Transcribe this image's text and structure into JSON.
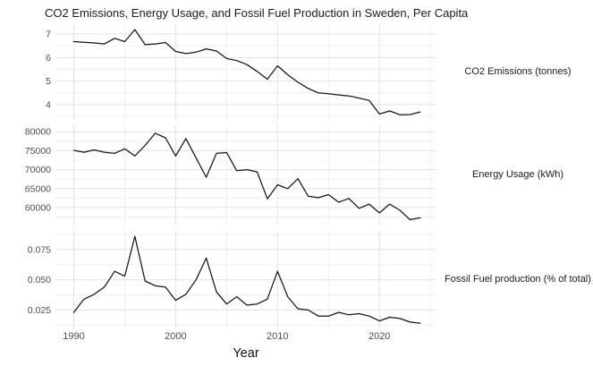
{
  "title": "CO2 Emissions, Energy Usage, and Fossil Fuel Production in Sweden, Per Capita",
  "x_axis": {
    "label": "Year",
    "ticks": [
      1990,
      2000,
      2010,
      2020
    ],
    "tick_labels": [
      "1990",
      "2000",
      "2010",
      "2020"
    ],
    "minor_ticks": [
      1995,
      2005,
      2015,
      2025
    ],
    "xlim": [
      1988.2,
      2025.6
    ]
  },
  "colors": {
    "line": "#151515",
    "grid_major": "#e2e2e2",
    "grid_minor": "#f0f0f0",
    "axis_text": "#4d4d4d",
    "text": "#1a1a1a",
    "background": "#ffffff"
  },
  "chart_data": [
    {
      "type": "line",
      "strip_label": "CO2 Emissions (tonnes)",
      "x": [
        1990,
        1991,
        1992,
        1993,
        1994,
        1995,
        1996,
        1997,
        1998,
        1999,
        2000,
        2001,
        2002,
        2003,
        2004,
        2005,
        2006,
        2007,
        2008,
        2009,
        2010,
        2011,
        2012,
        2013,
        2014,
        2015,
        2016,
        2017,
        2018,
        2019,
        2020,
        2021,
        2022,
        2023,
        2024
      ],
      "values": [
        6.68,
        6.65,
        6.62,
        6.58,
        6.82,
        6.68,
        7.19,
        6.55,
        6.58,
        6.64,
        6.26,
        6.17,
        6.23,
        6.37,
        6.28,
        5.96,
        5.87,
        5.7,
        5.41,
        5.08,
        5.65,
        5.27,
        4.95,
        4.69,
        4.5,
        4.46,
        4.41,
        4.37,
        4.28,
        4.18,
        3.6,
        3.73,
        3.57,
        3.58,
        3.69
      ],
      "y_ticks": [
        7,
        6,
        5,
        4
      ],
      "y_tick_labels": [
        "7",
        "6",
        "5",
        "4"
      ],
      "y_minor_ticks": [
        6.5,
        5.5,
        4.5,
        3.5
      ],
      "ylim": [
        3.35,
        7.42
      ]
    },
    {
      "type": "line",
      "strip_label": "Energy Usage (kWh)",
      "x": [
        1990,
        1991,
        1992,
        1993,
        1994,
        1995,
        1996,
        1997,
        1998,
        1999,
        2000,
        2001,
        2002,
        2003,
        2004,
        2005,
        2006,
        2007,
        2008,
        2009,
        2010,
        2011,
        2012,
        2013,
        2014,
        2015,
        2016,
        2017,
        2018,
        2019,
        2020,
        2021,
        2022,
        2023,
        2024
      ],
      "values": [
        75100,
        74600,
        75200,
        74600,
        74300,
        75500,
        73600,
        76400,
        79600,
        78400,
        73600,
        78200,
        73100,
        68000,
        74300,
        74500,
        69700,
        70000,
        69400,
        62300,
        66000,
        65000,
        67600,
        63000,
        62600,
        63400,
        61400,
        62400,
        59800,
        60900,
        58600,
        60900,
        59300,
        56800,
        57300
      ],
      "y_ticks": [
        80000,
        75000,
        70000,
        65000,
        60000
      ],
      "y_tick_labels": [
        "80000",
        "75000",
        "70000",
        "65000",
        "60000"
      ],
      "y_minor_ticks": [
        77500,
        72500,
        67500,
        62500,
        57500
      ],
      "ylim": [
        55500,
        81700
      ]
    },
    {
      "type": "line",
      "strip_label": "Fossil Fuel production (% of total)",
      "x": [
        1990,
        1991,
        1992,
        1993,
        1994,
        1995,
        1996,
        1997,
        1998,
        1999,
        2000,
        2001,
        2002,
        2003,
        2004,
        2005,
        2006,
        2007,
        2008,
        2009,
        2010,
        2011,
        2012,
        2013,
        2014,
        2015,
        2016,
        2017,
        2018,
        2019,
        2020,
        2021,
        2022,
        2023,
        2024
      ],
      "values": [
        0.023,
        0.034,
        0.038,
        0.044,
        0.057,
        0.053,
        0.086,
        0.049,
        0.045,
        0.044,
        0.033,
        0.038,
        0.05,
        0.068,
        0.04,
        0.03,
        0.036,
        0.029,
        0.03,
        0.034,
        0.057,
        0.036,
        0.026,
        0.025,
        0.02,
        0.02,
        0.023,
        0.021,
        0.022,
        0.02,
        0.016,
        0.019,
        0.018,
        0.015,
        0.014
      ],
      "y_ticks": [
        0.075,
        0.05,
        0.025
      ],
      "y_tick_labels": [
        "0.075",
        "0.050",
        "0.025"
      ],
      "y_minor_ticks": [
        0.0875,
        0.0625,
        0.0375,
        0.0125
      ],
      "ylim": [
        0.009,
        0.0905
      ]
    }
  ]
}
